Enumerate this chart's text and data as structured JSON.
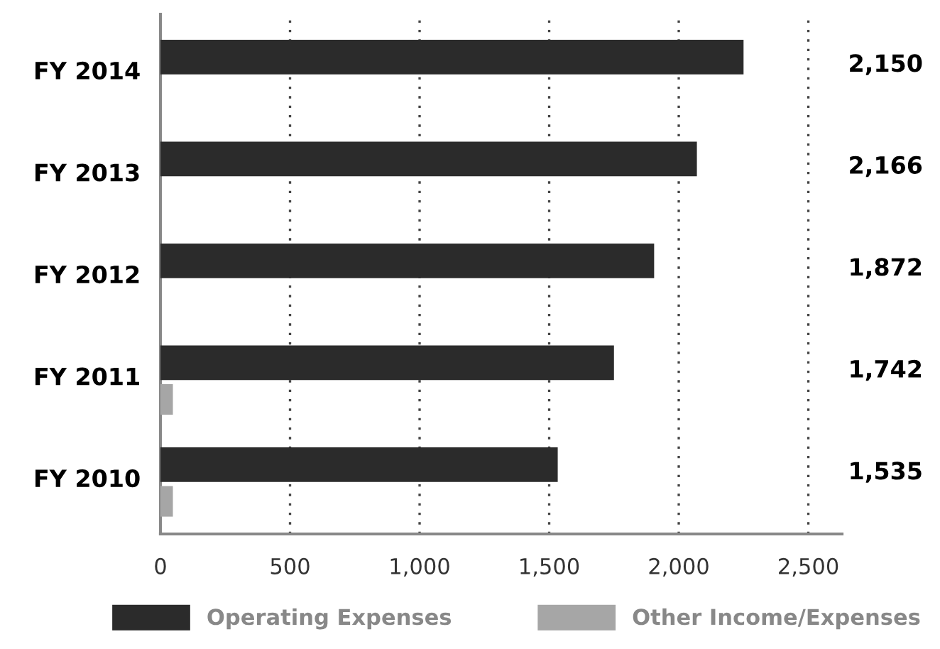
{
  "chart_data": {
    "type": "bar",
    "orientation": "horizontal",
    "categories": [
      "FY 2014",
      "FY 2013",
      "FY 2012",
      "FY 2011",
      "FY 2010"
    ],
    "series": [
      {
        "name": "Operating Expenses",
        "color": "#2b2b2b",
        "values": [
          2250,
          2070,
          1905,
          1750,
          1533
        ]
      },
      {
        "name": "Other Income/Expenses",
        "color": "#a6a6a6",
        "values": [
          null,
          null,
          null,
          48,
          48
        ]
      }
    ],
    "xlim": [
      0,
      2630
    ],
    "xticks": [
      0,
      {
        "value": 500,
        "label": "500"
      },
      {
        "value": 1000,
        "label": "1,000"
      },
      {
        "value": 1500,
        "label": "1,500"
      },
      {
        "value": 2000,
        "label": "2,000"
      },
      {
        "value": 2500,
        "label": "2,500"
      }
    ],
    "grid": "x",
    "legend": "bottom",
    "annotations": [
      "2,150",
      "2,166",
      "1,872",
      "1,742",
      "1,535"
    ]
  }
}
